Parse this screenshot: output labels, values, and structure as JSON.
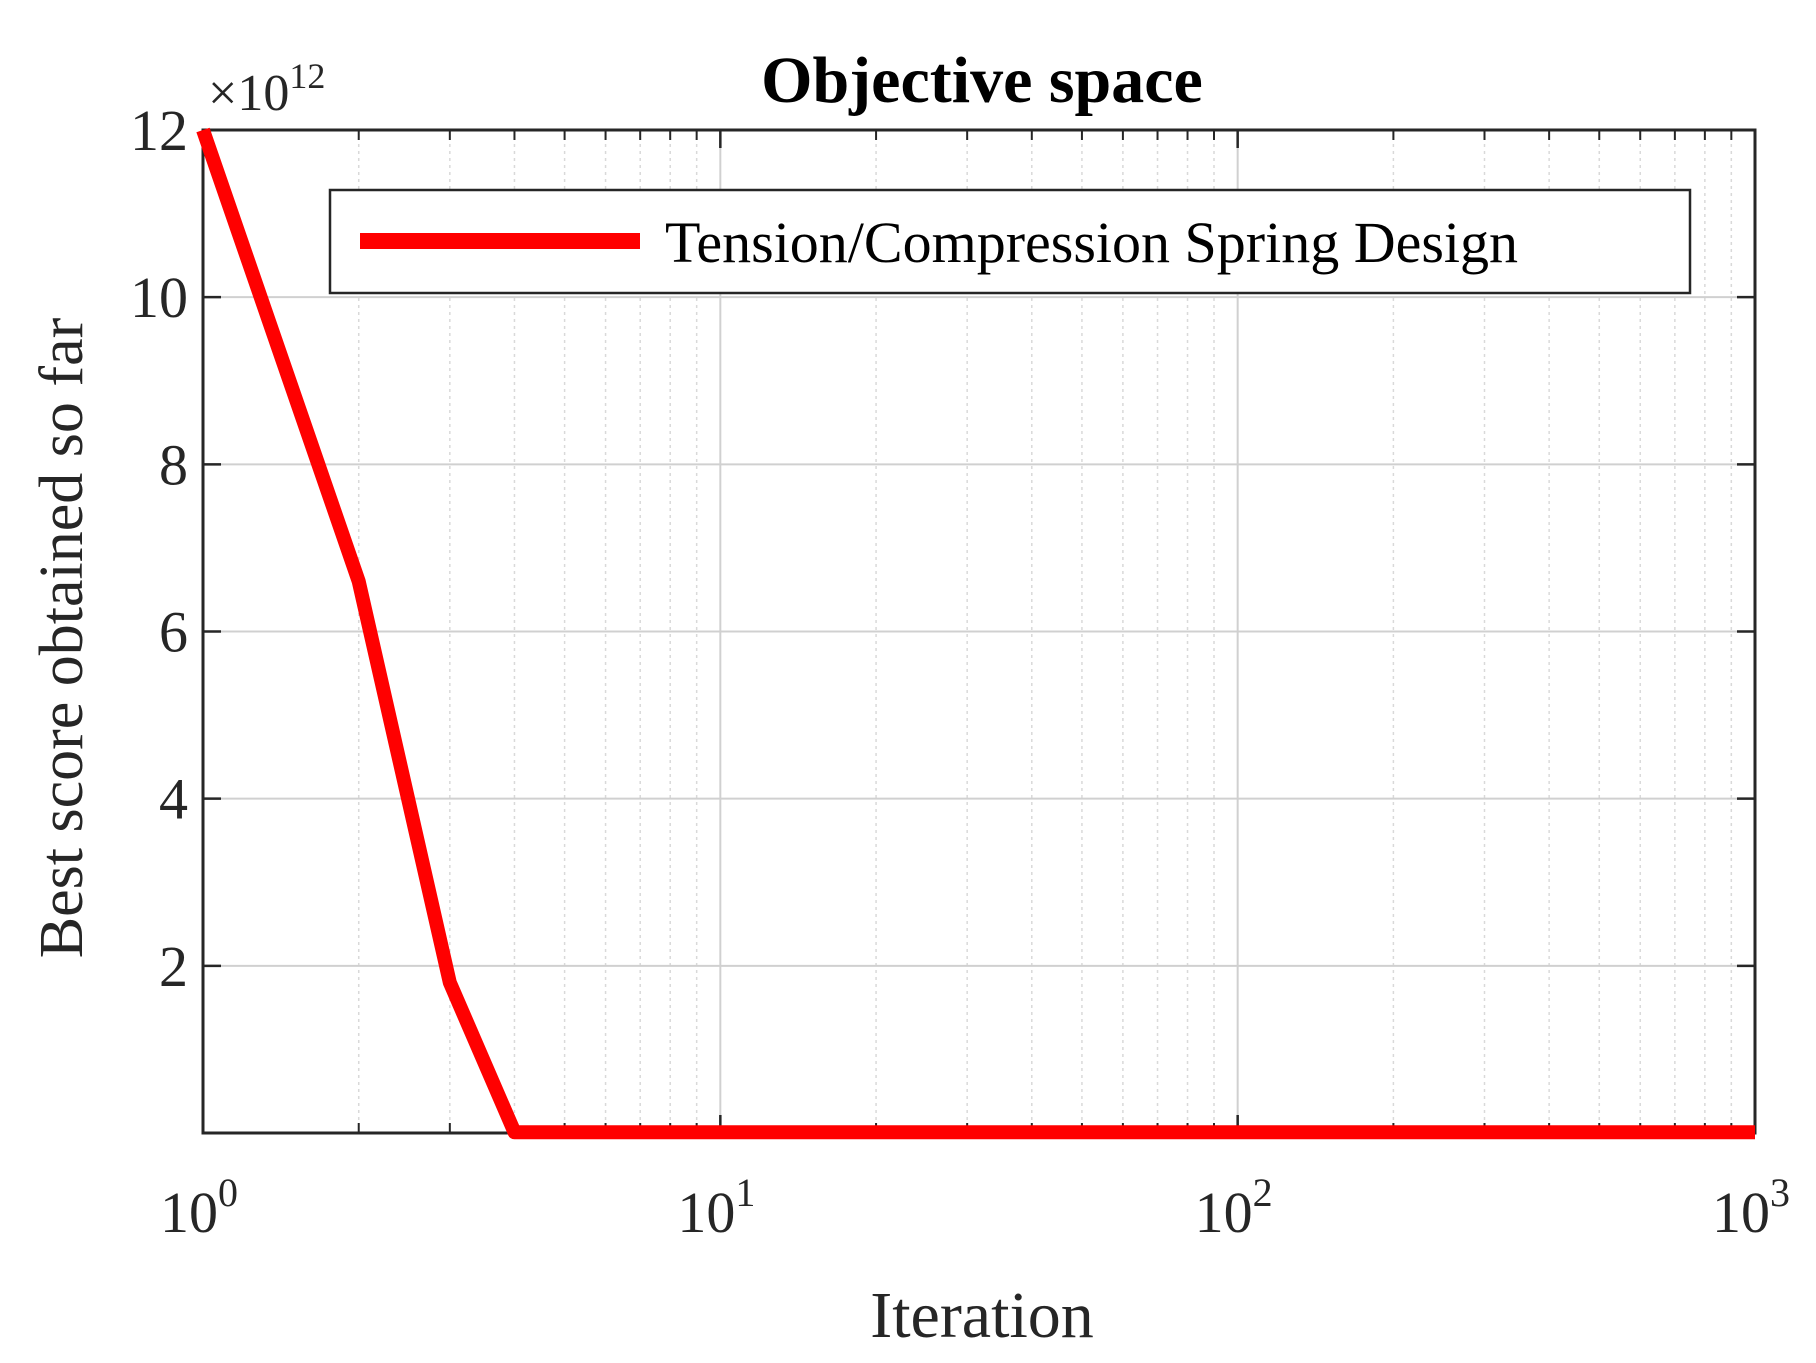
{
  "chart_data": {
    "type": "line",
    "title": "Objective space",
    "xlabel": "Iteration",
    "ylabel": "Best score obtained so far",
    "x_scale": "log",
    "xlim": [
      1,
      1000
    ],
    "ylim": [
      0,
      12000000000000
    ],
    "y_exponent_label": "×10^12",
    "y_exponent_base": "×10",
    "y_exponent_power": "12",
    "x_ticks": [
      {
        "value": 1,
        "base": "10",
        "power": "0"
      },
      {
        "value": 10,
        "base": "10",
        "power": "1"
      },
      {
        "value": 100,
        "base": "10",
        "power": "2"
      },
      {
        "value": 1000,
        "base": "10",
        "power": "3"
      }
    ],
    "y_ticks": [
      {
        "value": 2000000000000,
        "label": "2"
      },
      {
        "value": 4000000000000,
        "label": "4"
      },
      {
        "value": 6000000000000,
        "label": "6"
      },
      {
        "value": 8000000000000,
        "label": "8"
      },
      {
        "value": 10000000000000,
        "label": "10"
      },
      {
        "value": 12000000000000,
        "label": "12"
      }
    ],
    "grid": true,
    "minor_grid_x": true,
    "legend_position": "top-right",
    "series": [
      {
        "name": "Tension/Compression Spring Design",
        "color": "#ff0000",
        "x": [
          1,
          2,
          3,
          4,
          1000
        ],
        "y": [
          12000000000000,
          6600000000000,
          1800000000000,
          10000000000,
          10000000000
        ]
      }
    ]
  }
}
